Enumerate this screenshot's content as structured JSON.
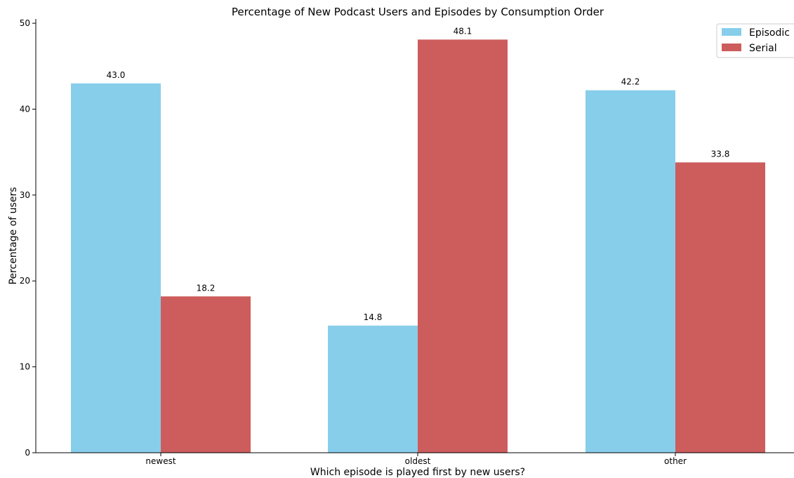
{
  "chart_data": {
    "type": "bar",
    "title": "Percentage of New Podcast Users and Episodes by Consumption Order",
    "xlabel": "Which episode is played first by new users?",
    "ylabel": "Percentage of users",
    "categories": [
      "newest",
      "oldest",
      "other"
    ],
    "series": [
      {
        "name": "Episodic",
        "color": "#87ceeb",
        "values": [
          43.0,
          14.8,
          42.2
        ],
        "labels": [
          "43.0",
          "14.8",
          "42.2"
        ]
      },
      {
        "name": "Serial",
        "color": "#cd5c5c",
        "values": [
          18.2,
          48.1,
          33.8
        ],
        "labels": [
          "18.2",
          "48.1",
          "33.8"
        ]
      }
    ],
    "ylim": [
      0,
      50.5
    ],
    "yticks": [
      "0",
      "10",
      "20",
      "30",
      "40",
      "50"
    ],
    "grid": false,
    "legend_position": "top-right"
  }
}
